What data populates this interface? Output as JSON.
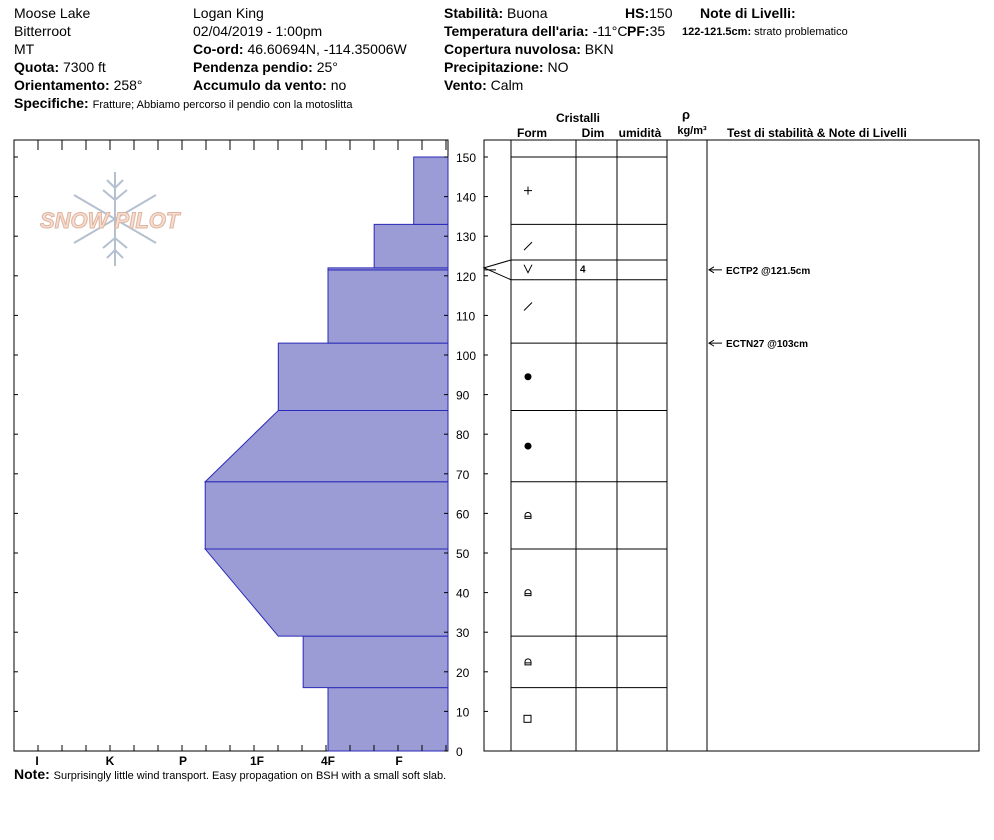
{
  "header": {
    "location": "Moose Lake",
    "range": "Bitterroot",
    "state": "MT",
    "observer": "Logan King",
    "datetime": "02/04/2019 - 1:00pm",
    "coord_label": "Co-ord:",
    "coord_value": "46.60694N, -114.35006W",
    "elevation_label": "Quota:",
    "elevation_value": "7300 ft",
    "slope_label": "Pendenza pendio:",
    "slope_value": "25°",
    "aspect_label": "Orientamento:",
    "aspect_value": "258°",
    "wind_loading_label": "Accumulo da vento:",
    "wind_loading_value": "no",
    "specifics_label": "Specifiche:",
    "specifics_value": "Fratture;  Abbiamo percorso il pendio con la motoslitta",
    "stability_label": "Stabilità:",
    "stability_value": "Buona",
    "air_temp_label": "Temperatura dell'aria:",
    "air_temp_value": "-11°C",
    "cloud_label": "Copertura nuvolosa:",
    "cloud_value": "BKN",
    "precip_label": "Precipitazione:",
    "precip_value": "NO",
    "wind_label": "Vento:",
    "wind_value": "Calm",
    "hs_label": "HS:",
    "hs_value": "150",
    "pf_label": "PF:",
    "pf_value": "35",
    "layer_notes_label": "Note di Livelli:",
    "layer_note_range": "122-121.5cm:",
    "layer_note_text": "strato problematico"
  },
  "columns": {
    "crystals": "Cristalli",
    "form": "Form",
    "size": "Dim",
    "moisture": "umidità",
    "rho": "ρ",
    "density_unit": "kg/m³",
    "stability_notes": "Test di stabilità & Note di Livelli"
  },
  "logo_text": "SNOW PILOT",
  "footer": {
    "note_label": "Note:",
    "note_text": "Surprisingly little wind transport. Easy propagation on BSH with a small soft slab."
  },
  "chart_data": {
    "type": "bar",
    "title": "",
    "xlabel": "",
    "ylabel": "",
    "ylim": [
      0,
      150
    ],
    "y_ticks": [
      0,
      10,
      20,
      30,
      40,
      50,
      60,
      70,
      80,
      90,
      100,
      110,
      120,
      130,
      140,
      150
    ],
    "hardness_scale": [
      "I",
      "K",
      "P",
      "1F",
      "4F",
      "F"
    ],
    "hardness_scale_note": "hardness axis runs from I (left, hardest) to F (right, softest); values are hardness index where F=1, 4F=2, 1F=3, P=4, K=5, I=6",
    "layers": [
      {
        "bottom": 0,
        "top": 16,
        "hardness_bottom": 2,
        "hardness_top": 2,
        "form": "square",
        "size": ""
      },
      {
        "bottom": 16,
        "top": 29,
        "hardness_bottom": 2.35,
        "hardness_top": 2.35,
        "form": "faceted-rounded",
        "size": ""
      },
      {
        "bottom": 29,
        "top": 51,
        "hardness_bottom": 2.7,
        "hardness_top": 3.7,
        "form": "faceted-rounded",
        "size": ""
      },
      {
        "bottom": 51,
        "top": 68,
        "hardness_bottom": 3.7,
        "hardness_top": 3.7,
        "form": "faceted-rounded",
        "size": ""
      },
      {
        "bottom": 68,
        "top": 86,
        "hardness_bottom": 3.7,
        "hardness_top": 2.7,
        "form": "rounded",
        "size": ""
      },
      {
        "bottom": 86,
        "top": 103,
        "hardness_bottom": 2.7,
        "hardness_top": 2.7,
        "form": "rounded",
        "size": ""
      },
      {
        "bottom": 103,
        "top": 121.5,
        "hardness_bottom": 2,
        "hardness_top": 2,
        "form": "decomposing",
        "size": ""
      },
      {
        "bottom": 121.5,
        "top": 122,
        "hardness_bottom": 2,
        "hardness_top": 2,
        "form": "surface-hoar",
        "size": "4"
      },
      {
        "bottom": 122,
        "top": 133,
        "hardness_bottom": 1.35,
        "hardness_top": 1.35,
        "form": "decomposing",
        "size": ""
      },
      {
        "bottom": 133,
        "top": 150,
        "hardness_bottom": 0.7,
        "hardness_top": 0.7,
        "form": "new-snow",
        "size": ""
      }
    ],
    "stability_tests": [
      {
        "depth": 121.5,
        "label": "ECTP2 @121.5cm"
      },
      {
        "depth": 103,
        "label": "ECTN27 @103cm"
      }
    ]
  }
}
